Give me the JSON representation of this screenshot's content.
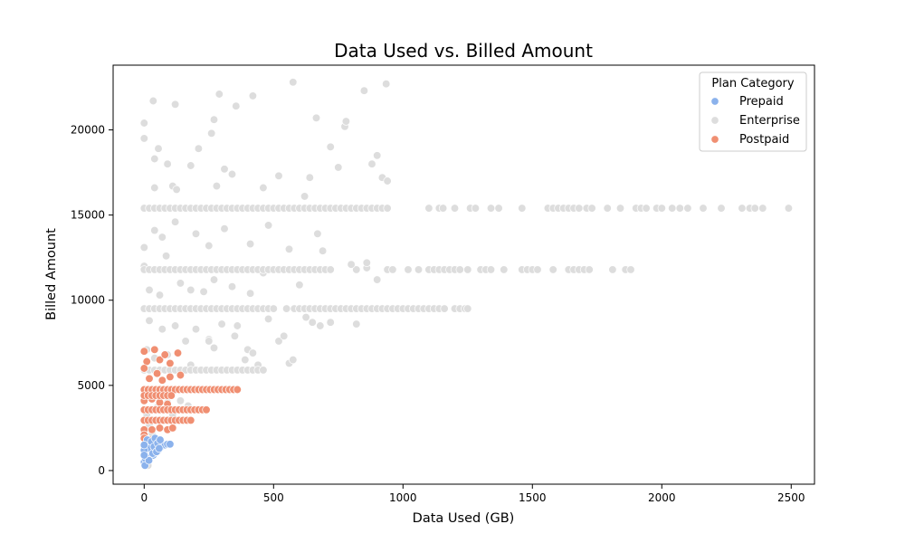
{
  "chart_data": {
    "type": "scatter",
    "title": "Data Used vs. Billed Amount",
    "xlabel": "Data Used (GB)",
    "ylabel": "Billed Amount",
    "xlim": [
      -120,
      2590
    ],
    "ylim": [
      -800,
      23800
    ],
    "xticks": [
      0,
      500,
      1000,
      1500,
      2000,
      2500
    ],
    "yticks": [
      0,
      5000,
      10000,
      15000,
      20000
    ],
    "grid": false,
    "legend": {
      "title": "Plan Category",
      "placement": "top-right",
      "entries": [
        "Prepaid",
        "Enterprise",
        "Postpaid"
      ]
    },
    "series": [
      {
        "name": "Enterprise",
        "color": "#dddddd",
        "points": [
          [
            0,
            20400
          ],
          [
            0,
            19500
          ],
          [
            35,
            21700
          ],
          [
            120,
            21500
          ],
          [
            290,
            22100
          ],
          [
            420,
            22000
          ],
          [
            575,
            22800
          ],
          [
            850,
            22300
          ],
          [
            935,
            22700
          ],
          [
            0,
            13100
          ],
          [
            40,
            18300
          ],
          [
            55,
            18900
          ],
          [
            90,
            18000
          ],
          [
            180,
            17900
          ],
          [
            210,
            18900
          ],
          [
            260,
            19800
          ],
          [
            270,
            20600
          ],
          [
            310,
            17700
          ],
          [
            340,
            17400
          ],
          [
            355,
            21400
          ],
          [
            520,
            17300
          ],
          [
            640,
            17200
          ],
          [
            665,
            20700
          ],
          [
            720,
            19000
          ],
          [
            775,
            20200
          ],
          [
            780,
            20500
          ],
          [
            750,
            17800
          ],
          [
            880,
            18000
          ],
          [
            900,
            18500
          ],
          [
            920,
            17200
          ],
          [
            940,
            17000
          ],
          [
            40,
            16600
          ],
          [
            110,
            16700
          ],
          [
            125,
            16500
          ],
          [
            280,
            16700
          ],
          [
            460,
            16600
          ],
          [
            620,
            16100
          ],
          [
            0,
            12000
          ],
          [
            40,
            14100
          ],
          [
            70,
            13700
          ],
          [
            85,
            12600
          ],
          [
            120,
            14600
          ],
          [
            200,
            13900
          ],
          [
            250,
            13200
          ],
          [
            310,
            14200
          ],
          [
            410,
            13300
          ],
          [
            480,
            14400
          ],
          [
            560,
            13000
          ],
          [
            670,
            13900
          ],
          [
            690,
            12900
          ],
          [
            20,
            10600
          ],
          [
            60,
            10300
          ],
          [
            140,
            11000
          ],
          [
            180,
            10600
          ],
          [
            230,
            10500
          ],
          [
            270,
            11200
          ],
          [
            340,
            10800
          ],
          [
            410,
            10400
          ],
          [
            460,
            11600
          ],
          [
            600,
            10900
          ],
          [
            820,
            11800
          ],
          [
            860,
            11900
          ],
          [
            900,
            11200
          ],
          [
            860,
            12200
          ],
          [
            800,
            12100
          ],
          [
            20,
            8800
          ],
          [
            70,
            8300
          ],
          [
            120,
            8500
          ],
          [
            200,
            8300
          ],
          [
            250,
            7700
          ],
          [
            300,
            8600
          ],
          [
            350,
            7900
          ],
          [
            360,
            8500
          ],
          [
            400,
            7100
          ],
          [
            420,
            6900
          ],
          [
            480,
            8900
          ],
          [
            520,
            7600
          ],
          [
            540,
            7900
          ],
          [
            560,
            6300
          ],
          [
            575,
            6500
          ],
          [
            625,
            9000
          ],
          [
            650,
            8700
          ],
          [
            680,
            8500
          ],
          [
            720,
            8700
          ],
          [
            820,
            8600
          ],
          [
            10,
            7100
          ],
          [
            40,
            6600
          ],
          [
            90,
            6800
          ],
          [
            160,
            7600
          ],
          [
            180,
            6200
          ],
          [
            250,
            7600
          ],
          [
            270,
            7200
          ],
          [
            390,
            6500
          ],
          [
            440,
            6200
          ],
          [
            10,
            3300
          ],
          [
            20,
            2700
          ],
          [
            30,
            2200
          ],
          [
            50,
            3700
          ],
          [
            90,
            4000
          ],
          [
            110,
            3300
          ],
          [
            140,
            4100
          ],
          [
            170,
            3800
          ],
          [
            5,
            1300
          ],
          [
            10,
            600
          ],
          [
            15,
            300
          ],
          [
            25,
            900
          ]
        ],
        "bands": [
          {
            "y": 15400,
            "x": [
              0,
              20,
              40,
              60,
              80,
              100,
              120,
              140,
              160,
              180,
              200,
              220,
              240,
              260,
              280,
              300,
              320,
              340,
              360,
              380,
              400,
              420,
              440,
              460,
              480,
              500,
              520,
              540,
              560,
              580,
              600,
              620,
              640,
              660,
              680,
              700,
              720,
              740,
              760,
              780,
              800,
              820,
              840,
              860,
              880,
              900,
              920,
              940,
              1100,
              1140,
              1155,
              1200,
              1260,
              1280,
              1340,
              1370,
              1460,
              1560,
              1580,
              1600,
              1620,
              1640,
              1660,
              1680,
              1710,
              1730,
              1790,
              1840,
              1900,
              1920,
              1940,
              1980,
              2000,
              2040,
              2070,
              2100,
              2160,
              2230,
              2310,
              2340,
              2360,
              2390,
              2490
            ]
          },
          {
            "y": 11800,
            "x": [
              0,
              20,
              40,
              60,
              80,
              100,
              120,
              140,
              160,
              180,
              200,
              220,
              240,
              260,
              280,
              300,
              320,
              340,
              360,
              380,
              400,
              420,
              440,
              460,
              480,
              500,
              520,
              540,
              560,
              580,
              600,
              620,
              640,
              660,
              680,
              700,
              720,
              940,
              960,
              1020,
              1060,
              1100,
              1120,
              1140,
              1160,
              1180,
              1200,
              1220,
              1250,
              1300,
              1320,
              1340,
              1390,
              1460,
              1480,
              1500,
              1520,
              1580,
              1640,
              1660,
              1680,
              1700,
              1720,
              1810,
              1860,
              1880
            ]
          },
          {
            "y": 9500,
            "x": [
              0,
              20,
              40,
              60,
              80,
              100,
              120,
              140,
              160,
              180,
              200,
              220,
              240,
              260,
              280,
              300,
              320,
              340,
              360,
              380,
              400,
              420,
              440,
              460,
              480,
              500,
              550,
              580,
              600,
              620,
              640,
              660,
              680,
              700,
              720,
              740,
              760,
              780,
              800,
              820,
              840,
              860,
              880,
              900,
              920,
              940,
              960,
              980,
              1000,
              1020,
              1040,
              1060,
              1080,
              1100,
              1120,
              1140,
              1160,
              1200,
              1220,
              1240,
              1250
            ]
          },
          {
            "y": 5900,
            "x": [
              0,
              20,
              40,
              60,
              80,
              100,
              120,
              140,
              160,
              180,
              200,
              220,
              240,
              260,
              280,
              300,
              320,
              340,
              360,
              380,
              400,
              420,
              440,
              460
            ]
          }
        ]
      },
      {
        "name": "Postpaid",
        "color": "#f08f72",
        "points": [
          [
            0,
            7000
          ],
          [
            10,
            6400
          ],
          [
            40,
            7100
          ],
          [
            60,
            6500
          ],
          [
            80,
            6800
          ],
          [
            100,
            6300
          ],
          [
            130,
            6900
          ],
          [
            0,
            6000
          ],
          [
            20,
            5400
          ],
          [
            50,
            5700
          ],
          [
            70,
            5300
          ],
          [
            100,
            5500
          ],
          [
            140,
            5600
          ],
          [
            0,
            4100
          ],
          [
            30,
            4200
          ],
          [
            60,
            4000
          ],
          [
            90,
            3900
          ],
          [
            0,
            2400
          ],
          [
            0,
            2100
          ],
          [
            30,
            2400
          ],
          [
            60,
            2500
          ],
          [
            90,
            2400
          ],
          [
            110,
            2500
          ],
          [
            0,
            1900
          ],
          [
            20,
            1800
          ]
        ],
        "bands": [
          {
            "y": 4750,
            "x": [
              0,
              15,
              30,
              45,
              60,
              75,
              90,
              105,
              120,
              135,
              150,
              165,
              180,
              195,
              210,
              225,
              240,
              255,
              270,
              285,
              300,
              315,
              330,
              345,
              360
            ]
          },
          {
            "y": 4400,
            "x": [
              0,
              15,
              30,
              45,
              60,
              75,
              90,
              105
            ]
          },
          {
            "y": 3570,
            "x": [
              0,
              15,
              30,
              45,
              60,
              75,
              90,
              105,
              120,
              135,
              150,
              165,
              180,
              195,
              210,
              225,
              240
            ]
          },
          {
            "y": 2950,
            "x": [
              0,
              15,
              30,
              45,
              60,
              75,
              90,
              105,
              120,
              135,
              150,
              165,
              180
            ]
          }
        ]
      },
      {
        "name": "Prepaid",
        "color": "#8bb2ec",
        "points": [
          [
            0,
            500
          ],
          [
            5,
            700
          ],
          [
            10,
            1000
          ],
          [
            15,
            1200
          ],
          [
            20,
            800
          ],
          [
            25,
            1400
          ],
          [
            30,
            1100
          ],
          [
            35,
            900
          ],
          [
            40,
            1600
          ],
          [
            45,
            1300
          ],
          [
            50,
            1500
          ],
          [
            55,
            1200
          ],
          [
            60,
            1700
          ],
          [
            65,
            1400
          ],
          [
            70,
            1600
          ],
          [
            80,
            1500
          ],
          [
            90,
            1550
          ],
          [
            100,
            1550
          ],
          [
            3,
            300
          ],
          [
            8,
            1500
          ],
          [
            12,
            1800
          ],
          [
            18,
            600
          ],
          [
            22,
            1300
          ],
          [
            28,
            1700
          ],
          [
            33,
            1000
          ],
          [
            38,
            1400
          ],
          [
            42,
            1900
          ],
          [
            48,
            1100
          ],
          [
            52,
            1600
          ],
          [
            58,
            1300
          ],
          [
            62,
            1800
          ],
          [
            0,
            1200
          ],
          [
            0,
            900
          ],
          [
            0,
            1500
          ]
        ]
      }
    ]
  }
}
